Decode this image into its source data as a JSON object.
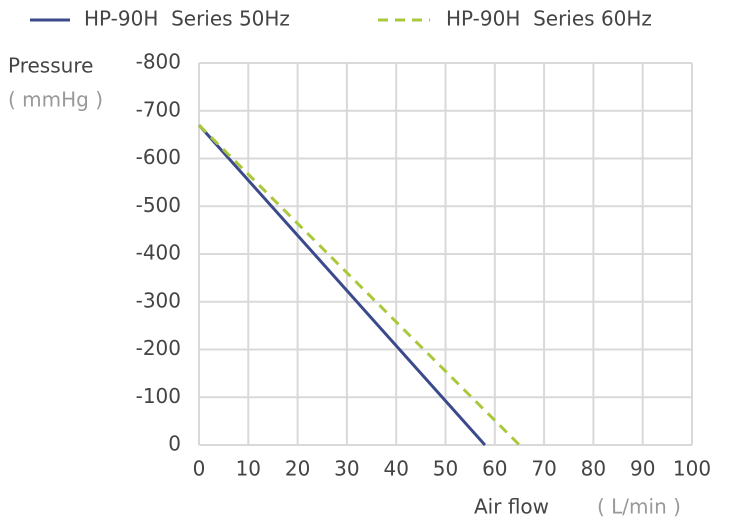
{
  "chart_data": {
    "type": "line",
    "y_label": "Pressure",
    "y_unit": "( mmHg )",
    "x_label": "Air flow",
    "x_unit": "( L/min )",
    "xlim": [
      0,
      100
    ],
    "xticks": [
      0,
      10,
      20,
      30,
      40,
      50,
      60,
      70,
      80,
      90,
      100
    ],
    "ylim": [
      0,
      -800
    ],
    "yticks": [
      0,
      -100,
      -200,
      -300,
      -400,
      -500,
      -600,
      -700,
      -800
    ],
    "grid": true,
    "series": [
      {
        "name": "HP-90H  Series 50Hz",
        "color": "#3b4a8b",
        "dash": false,
        "x": [
          0,
          58
        ],
        "values": [
          -670,
          0
        ]
      },
      {
        "name": "HP-90H  Series 60Hz",
        "color": "#a9c83c",
        "dash": true,
        "x": [
          0,
          65
        ],
        "values": [
          -670,
          0
        ]
      }
    ]
  }
}
